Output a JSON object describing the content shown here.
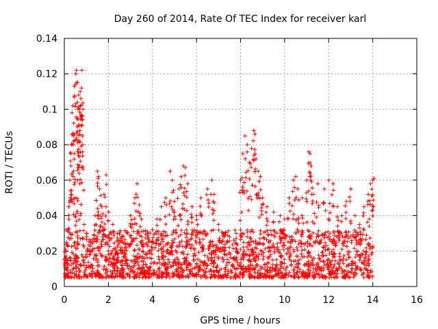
{
  "chart_data": {
    "type": "scatter",
    "title": "Day 260 of 2014, Rate Of TEC Index for receiver karl",
    "xlabel": "GPS time / hours",
    "ylabel": "ROTI / TECUs",
    "xlim": [
      0,
      16
    ],
    "ylim": [
      0,
      0.14
    ],
    "x_ticks": [
      0,
      2,
      4,
      6,
      8,
      10,
      12,
      14,
      16
    ],
    "y_ticks": [
      0,
      0.02,
      0.04,
      0.06,
      0.08,
      0.1,
      0.12,
      0.14
    ],
    "x_tick_labels": [
      "0",
      "2",
      "4",
      "6",
      "8",
      "10",
      "12",
      "14",
      "16"
    ],
    "y_tick_labels": [
      "0",
      "0.02",
      "0.04",
      "0.06",
      "0.08",
      "0.1",
      "0.12",
      "0.14"
    ],
    "grid": true,
    "marker": "+",
    "series": [
      {
        "name": "ROTI",
        "color": "#ff0000",
        "points": [
          [
            0.05,
            0.021
          ],
          [
            0.1,
            0.015
          ],
          [
            0.15,
            0.032
          ],
          [
            0.2,
            0.045
          ],
          [
            0.25,
            0.06
          ],
          [
            0.3,
            0.068
          ],
          [
            0.32,
            0.08
          ],
          [
            0.35,
            0.098
          ],
          [
            0.38,
            0.102
          ],
          [
            0.42,
            0.082
          ],
          [
            0.45,
            0.113
          ],
          [
            0.5,
            0.114
          ],
          [
            0.52,
            0.12
          ],
          [
            0.55,
            0.122
          ],
          [
            0.58,
            0.115
          ],
          [
            0.6,
            0.104
          ],
          [
            0.62,
            0.1
          ],
          [
            0.65,
            0.108
          ],
          [
            0.68,
            0.091
          ],
          [
            0.7,
            0.088
          ],
          [
            0.72,
            0.11
          ],
          [
            0.75,
            0.106
          ],
          [
            0.78,
            0.112
          ],
          [
            0.8,
            0.122
          ],
          [
            0.82,
            0.085
          ],
          [
            0.85,
            0.1
          ],
          [
            0.6,
            0.06
          ],
          [
            0.5,
            0.05
          ],
          [
            0.4,
            0.062
          ],
          [
            0.7,
            0.058
          ],
          [
            0.9,
            0.035
          ],
          [
            1.0,
            0.03
          ],
          [
            1.2,
            0.025
          ],
          [
            1.4,
            0.04
          ],
          [
            1.5,
            0.065
          ],
          [
            1.55,
            0.062
          ],
          [
            1.6,
            0.055
          ],
          [
            1.7,
            0.045
          ],
          [
            1.8,
            0.052
          ],
          [
            1.9,
            0.063
          ],
          [
            2.0,
            0.042
          ],
          [
            2.2,
            0.035
          ],
          [
            2.4,
            0.03
          ],
          [
            2.6,
            0.028
          ],
          [
            2.8,
            0.022
          ],
          [
            3.0,
            0.04
          ],
          [
            3.1,
            0.035
          ],
          [
            3.2,
            0.05
          ],
          [
            3.3,
            0.058
          ],
          [
            3.4,
            0.046
          ],
          [
            3.5,
            0.038
          ],
          [
            3.8,
            0.03
          ],
          [
            4.0,
            0.032
          ],
          [
            4.2,
            0.038
          ],
          [
            4.4,
            0.045
          ],
          [
            4.6,
            0.05
          ],
          [
            4.8,
            0.065
          ],
          [
            4.9,
            0.06
          ],
          [
            5.0,
            0.048
          ],
          [
            5.2,
            0.055
          ],
          [
            5.3,
            0.062
          ],
          [
            5.4,
            0.068
          ],
          [
            5.5,
            0.067
          ],
          [
            5.6,
            0.058
          ],
          [
            5.8,
            0.045
          ],
          [
            6.0,
            0.04
          ],
          [
            6.2,
            0.05
          ],
          [
            6.5,
            0.055
          ],
          [
            6.7,
            0.06
          ],
          [
            6.8,
            0.052
          ],
          [
            7.0,
            0.035
          ],
          [
            7.2,
            0.03
          ],
          [
            7.5,
            0.028
          ],
          [
            7.8,
            0.03
          ],
          [
            8.0,
            0.06
          ],
          [
            8.1,
            0.075
          ],
          [
            8.2,
            0.085
          ],
          [
            8.3,
            0.08
          ],
          [
            8.4,
            0.07
          ],
          [
            8.5,
            0.078
          ],
          [
            8.6,
            0.088
          ],
          [
            8.65,
            0.086
          ],
          [
            8.7,
            0.072
          ],
          [
            8.8,
            0.065
          ],
          [
            8.9,
            0.062
          ],
          [
            9.0,
            0.05
          ],
          [
            9.2,
            0.045
          ],
          [
            9.5,
            0.042
          ],
          [
            9.8,
            0.04
          ],
          [
            10.0,
            0.038
          ],
          [
            10.2,
            0.05
          ],
          [
            10.4,
            0.06
          ],
          [
            10.5,
            0.062
          ],
          [
            10.6,
            0.055
          ],
          [
            10.8,
            0.05
          ],
          [
            11.0,
            0.06
          ],
          [
            11.1,
            0.076
          ],
          [
            11.15,
            0.075
          ],
          [
            11.2,
            0.068
          ],
          [
            11.3,
            0.052
          ],
          [
            11.5,
            0.058
          ],
          [
            11.8,
            0.055
          ],
          [
            12.0,
            0.06
          ],
          [
            12.2,
            0.058
          ],
          [
            12.4,
            0.045
          ],
          [
            12.6,
            0.04
          ],
          [
            12.8,
            0.048
          ],
          [
            13.0,
            0.055
          ],
          [
            13.2,
            0.04
          ],
          [
            13.4,
            0.035
          ],
          [
            13.6,
            0.045
          ],
          [
            13.8,
            0.052
          ],
          [
            13.9,
            0.058
          ],
          [
            14.0,
            0.06
          ],
          [
            14.05,
            0.061
          ]
        ],
        "baseline_band": {
          "x_start": 0.0,
          "x_end": 14.0,
          "typical_low": 0.005,
          "typical_high": 0.032
        }
      }
    ]
  }
}
